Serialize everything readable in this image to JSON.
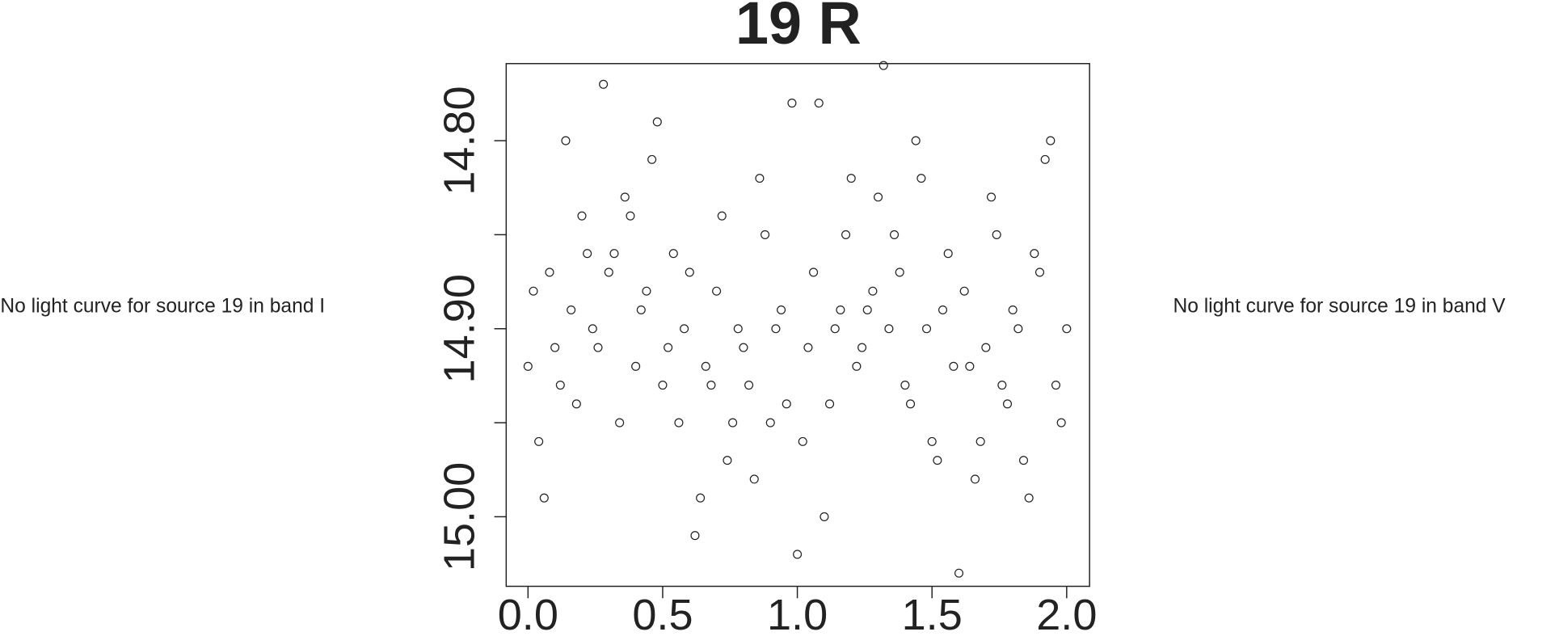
{
  "chart_data": {
    "type": "scatter",
    "title": "19 R",
    "annotations": [
      "No light curve for source 19 in band I",
      "No light curve for source 19 in band V"
    ],
    "x": [
      0,
      0.02,
      0.04,
      0.06,
      0.08,
      0.1,
      0.12,
      0.14,
      0.16,
      0.18,
      0.2,
      0.22,
      0.24,
      0.26,
      0.28,
      0.3,
      0.32,
      0.34,
      0.36,
      0.38,
      0.4,
      0.42,
      0.44,
      0.46,
      0.48,
      0.5,
      0.52,
      0.54,
      0.56,
      0.58,
      0.6,
      0.62,
      0.64,
      0.66,
      0.68,
      0.7,
      0.72,
      0.74,
      0.76,
      0.78,
      0.8,
      0.82,
      0.84,
      0.86,
      0.88,
      0.9,
      0.92,
      0.94,
      0.96,
      0.98,
      1,
      1.02,
      1.04,
      1.06,
      1.08,
      1.1,
      1.12,
      1.14,
      1.16,
      1.18,
      1.2,
      1.22,
      1.24,
      1.26,
      1.28,
      1.3,
      1.32,
      1.34,
      1.36,
      1.38,
      1.4,
      1.42,
      1.44,
      1.46,
      1.48,
      1.5,
      1.52,
      1.54,
      1.56,
      1.58,
      1.6,
      1.62,
      1.64,
      1.66,
      1.68,
      1.7,
      1.72,
      1.74,
      1.76,
      1.78,
      1.8,
      1.82,
      1.84,
      1.86,
      1.88,
      1.9,
      1.92,
      1.94,
      1.96,
      1.98,
      2
    ],
    "values": [
      14.92,
      14.88,
      14.96,
      14.99,
      14.87,
      14.91,
      14.93,
      14.8,
      14.89,
      14.94,
      14.84,
      14.86,
      14.9,
      14.91,
      14.77,
      14.87,
      14.86,
      14.95,
      14.83,
      14.84,
      14.92,
      14.89,
      14.88,
      14.81,
      14.79,
      14.93,
      14.91,
      14.86,
      14.95,
      14.9,
      14.87,
      15.01,
      14.99,
      14.92,
      14.93,
      14.88,
      14.84,
      14.97,
      14.95,
      14.9,
      14.91,
      14.93,
      14.98,
      14.82,
      14.85,
      14.95,
      14.9,
      14.89,
      14.94,
      14.78,
      15.02,
      14.96,
      14.91,
      14.87,
      14.78,
      15.0,
      14.94,
      14.9,
      14.89,
      14.85,
      14.82,
      14.92,
      14.91,
      14.89,
      14.88,
      14.83,
      14.76,
      14.9,
      14.85,
      14.87,
      14.93,
      14.94,
      14.8,
      14.82,
      14.9,
      14.96,
      14.97,
      14.89,
      14.86,
      14.92,
      15.03,
      14.88,
      14.92,
      14.98,
      14.96,
      14.91,
      14.83,
      14.85,
      14.93,
      14.94,
      14.89,
      14.9,
      14.97,
      14.99,
      14.86,
      14.87,
      14.81,
      14.8,
      14.93,
      14.95,
      14.9
    ],
    "color": "#222222",
    "xlim": [
      -0.081,
      2.085
    ],
    "xticks": [
      {
        "value": 0,
        "label": "0.0"
      },
      0.5,
      {
        "value": 1,
        "label": "1.0"
      },
      1.5,
      {
        "value": 2,
        "label": "2.0"
      }
    ],
    "ylim": [
      14.759,
      15.037
    ],
    "invert_y": true,
    "yticks": [
      {
        "value": 14.8,
        "label": "14.80"
      },
      {
        "value": 14.85
      },
      {
        "value": 14.9,
        "label": "14.90"
      },
      {
        "value": 14.95
      },
      {
        "value": 15,
        "label": "15.00"
      }
    ],
    "grid": false
  }
}
